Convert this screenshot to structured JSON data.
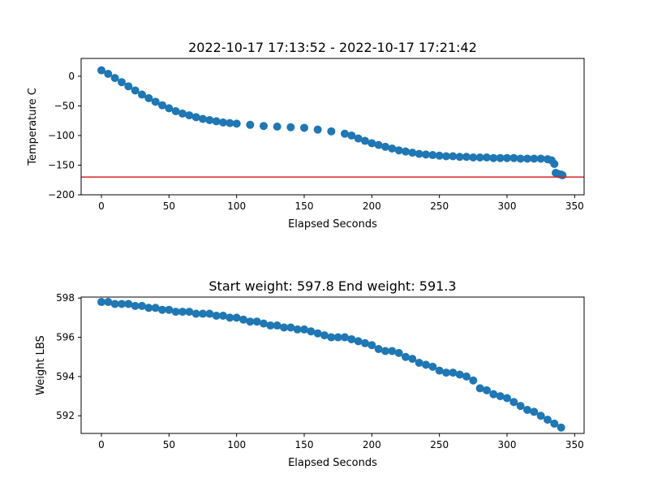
{
  "chart_data": [
    {
      "type": "scatter",
      "title": "2022-10-17 17:13:52 - 2022-10-17 17:21:42",
      "xlabel": "Elapsed Seconds",
      "ylabel": "Temperature C",
      "xlim": [
        -15,
        357
      ],
      "ylim": [
        -200,
        30
      ],
      "xticks": [
        0,
        50,
        100,
        150,
        200,
        250,
        300,
        350
      ],
      "yticks": [
        0,
        -50,
        -100,
        -150,
        -200
      ],
      "xtick_labels": [
        "0",
        "50",
        "100",
        "150",
        "200",
        "250",
        "300",
        "350"
      ],
      "ytick_labels": [
        "0",
        "−50",
        "−100",
        "−150",
        "−200"
      ],
      "grid": false,
      "marker_color": "#1f77b4",
      "hline": {
        "y": -170,
        "color": "#d62728"
      },
      "points": [
        [
          0,
          10
        ],
        [
          5,
          4
        ],
        [
          10,
          -3
        ],
        [
          15,
          -10
        ],
        [
          20,
          -17
        ],
        [
          25,
          -24
        ],
        [
          30,
          -31
        ],
        [
          35,
          -37
        ],
        [
          40,
          -43
        ],
        [
          45,
          -49
        ],
        [
          50,
          -54
        ],
        [
          55,
          -59
        ],
        [
          60,
          -63
        ],
        [
          65,
          -66
        ],
        [
          70,
          -69
        ],
        [
          75,
          -72
        ],
        [
          80,
          -74
        ],
        [
          85,
          -76
        ],
        [
          90,
          -78
        ],
        [
          95,
          -79
        ],
        [
          100,
          -80
        ],
        [
          110,
          -82
        ],
        [
          120,
          -84
        ],
        [
          130,
          -85
        ],
        [
          140,
          -86
        ],
        [
          150,
          -87
        ],
        [
          160,
          -90
        ],
        [
          170,
          -93
        ],
        [
          180,
          -97
        ],
        [
          185,
          -100
        ],
        [
          190,
          -105
        ],
        [
          195,
          -109
        ],
        [
          200,
          -113
        ],
        [
          205,
          -116
        ],
        [
          210,
          -119
        ],
        [
          215,
          -122
        ],
        [
          220,
          -125
        ],
        [
          225,
          -127
        ],
        [
          230,
          -129
        ],
        [
          235,
          -131
        ],
        [
          240,
          -132
        ],
        [
          245,
          -133
        ],
        [
          250,
          -134
        ],
        [
          255,
          -135
        ],
        [
          260,
          -135
        ],
        [
          265,
          -136
        ],
        [
          270,
          -136
        ],
        [
          275,
          -137
        ],
        [
          280,
          -137
        ],
        [
          285,
          -137
        ],
        [
          290,
          -138
        ],
        [
          295,
          -138
        ],
        [
          300,
          -138
        ],
        [
          305,
          -138
        ],
        [
          310,
          -139
        ],
        [
          315,
          -139
        ],
        [
          320,
          -139
        ],
        [
          325,
          -139
        ],
        [
          330,
          -140
        ],
        [
          333,
          -142
        ],
        [
          335,
          -148
        ],
        [
          336,
          -163
        ],
        [
          338,
          -165
        ],
        [
          340,
          -166
        ],
        [
          341,
          -167
        ]
      ]
    },
    {
      "type": "scatter",
      "title": "Start weight: 597.8 End weight: 591.3",
      "xlabel": "Elapsed Seconds",
      "ylabel": "Weight LBS",
      "xlim": [
        -15,
        357
      ],
      "ylim": [
        591.1,
        598.05
      ],
      "xticks": [
        0,
        50,
        100,
        150,
        200,
        250,
        300,
        350
      ],
      "yticks": [
        592,
        594,
        596,
        598
      ],
      "xtick_labels": [
        "0",
        "50",
        "100",
        "150",
        "200",
        "250",
        "300",
        "350"
      ],
      "ytick_labels": [
        "592",
        "594",
        "596",
        "598"
      ],
      "grid": false,
      "marker_color": "#1f77b4",
      "points": [
        [
          0,
          597.8
        ],
        [
          5,
          597.8
        ],
        [
          10,
          597.7
        ],
        [
          15,
          597.7
        ],
        [
          20,
          597.7
        ],
        [
          25,
          597.6
        ],
        [
          30,
          597.6
        ],
        [
          35,
          597.5
        ],
        [
          40,
          597.5
        ],
        [
          45,
          597.4
        ],
        [
          50,
          597.4
        ],
        [
          55,
          597.3
        ],
        [
          60,
          597.3
        ],
        [
          65,
          597.3
        ],
        [
          70,
          597.2
        ],
        [
          75,
          597.2
        ],
        [
          80,
          597.2
        ],
        [
          85,
          597.1
        ],
        [
          90,
          597.1
        ],
        [
          95,
          597.0
        ],
        [
          100,
          597.0
        ],
        [
          105,
          596.9
        ],
        [
          110,
          596.8
        ],
        [
          115,
          596.8
        ],
        [
          120,
          596.7
        ],
        [
          125,
          596.6
        ],
        [
          130,
          596.6
        ],
        [
          135,
          596.5
        ],
        [
          140,
          596.5
        ],
        [
          145,
          596.4
        ],
        [
          150,
          596.4
        ],
        [
          155,
          596.3
        ],
        [
          160,
          596.2
        ],
        [
          165,
          596.1
        ],
        [
          170,
          596.0
        ],
        [
          175,
          596.0
        ],
        [
          180,
          596.0
        ],
        [
          185,
          595.9
        ],
        [
          190,
          595.8
        ],
        [
          195,
          595.7
        ],
        [
          200,
          595.6
        ],
        [
          205,
          595.4
        ],
        [
          210,
          595.3
        ],
        [
          215,
          595.3
        ],
        [
          220,
          595.2
        ],
        [
          225,
          595.0
        ],
        [
          230,
          594.9
        ],
        [
          235,
          594.7
        ],
        [
          240,
          594.6
        ],
        [
          245,
          594.5
        ],
        [
          250,
          594.3
        ],
        [
          255,
          594.2
        ],
        [
          260,
          594.2
        ],
        [
          265,
          594.1
        ],
        [
          270,
          594.0
        ],
        [
          275,
          593.8
        ],
        [
          280,
          593.4
        ],
        [
          285,
          593.3
        ],
        [
          290,
          593.1
        ],
        [
          295,
          593.0
        ],
        [
          300,
          592.9
        ],
        [
          305,
          592.7
        ],
        [
          310,
          592.5
        ],
        [
          315,
          592.3
        ],
        [
          320,
          592.2
        ],
        [
          325,
          592.0
        ],
        [
          330,
          591.8
        ],
        [
          335,
          591.6
        ],
        [
          340,
          591.4
        ]
      ]
    }
  ]
}
